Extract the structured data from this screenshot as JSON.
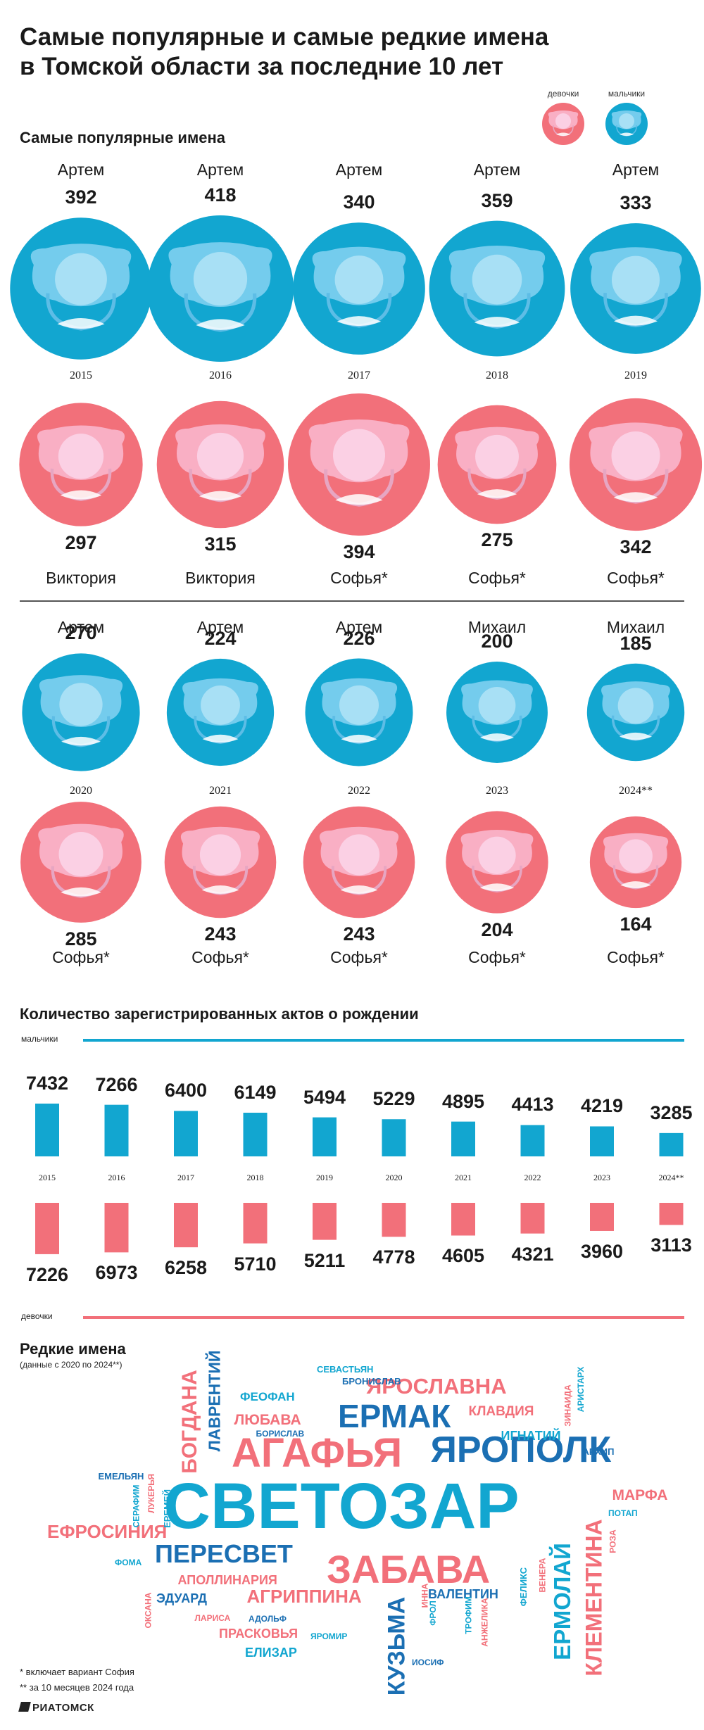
{
  "title_lines": [
    "Самые популярные и самые редкие имена",
    "в Томской области за последние 10 лет"
  ],
  "legend": {
    "girls": "девочки",
    "boys": "мальчики"
  },
  "colors": {
    "boys": "#12a6d0",
    "girls": "#f2707a",
    "boys_inner": "#a8e0f5",
    "girls_inner": "#fbd0e4"
  },
  "popular_section_title": "Самые популярные имена",
  "chart_data": [
    {
      "type": "bubble",
      "title": "Самые популярные имена",
      "categories": [
        "2015",
        "2016",
        "2017",
        "2018",
        "2019",
        "2020",
        "2021",
        "2022",
        "2023",
        "2024**"
      ],
      "series": [
        {
          "name": "мальчики",
          "names": [
            "Артем",
            "Артем",
            "Артем",
            "Артем",
            "Артем",
            "Артем",
            "Артем",
            "Артем",
            "Михаил",
            "Михаил"
          ],
          "values": [
            392,
            418,
            340,
            359,
            333,
            270,
            224,
            226,
            200,
            185
          ]
        },
        {
          "name": "девочки",
          "names": [
            "Виктория",
            "Виктория",
            "Софья*",
            "Софья*",
            "Софья*",
            "Софья*",
            "Софья*",
            "Софья*",
            "Софья*",
            "Софья*"
          ],
          "values": [
            297,
            315,
            394,
            275,
            342,
            285,
            243,
            243,
            204,
            164
          ]
        }
      ]
    },
    {
      "type": "bar",
      "title": "Количество зарегистрированных актов о рождении",
      "categories": [
        "2015",
        "2016",
        "2017",
        "2018",
        "2019",
        "2020",
        "2021",
        "2022",
        "2023",
        "2024**"
      ],
      "series": [
        {
          "name": "мальчики",
          "values": [
            7432,
            7266,
            6400,
            6149,
            5494,
            5229,
            4895,
            4413,
            4219,
            3285
          ]
        },
        {
          "name": "девочки",
          "values": [
            7226,
            6973,
            6258,
            5710,
            5211,
            4778,
            4605,
            4321,
            3960,
            3113
          ]
        }
      ]
    }
  ],
  "births_section_title": "Количество зарегистрированных актов о рождении",
  "births_boys_label": "мальчики",
  "births_girls_label": "девочки",
  "rare_section_title": "Редкие имена",
  "rare_subtitle": "(данные с 2020 по 2024**)",
  "rare_names": [
    {
      "text": "СВЕТОЗАР",
      "color": "boys"
    },
    {
      "text": "АГАФЬЯ",
      "color": "girls"
    },
    {
      "text": "ЯРОПОЛК",
      "color": "boysdark"
    },
    {
      "text": "ЕРМАК",
      "color": "boysdark"
    },
    {
      "text": "ЗАБАВА",
      "color": "girls"
    },
    {
      "text": "ПЕРЕСВЕТ",
      "color": "boysdark"
    },
    {
      "text": "ЯРОСЛАВНА",
      "color": "girls"
    },
    {
      "text": "ЕФРОСИНИЯ",
      "color": "girls"
    },
    {
      "text": "БОГДАНА",
      "color": "girls"
    },
    {
      "text": "ЛАВРЕНТИЙ",
      "color": "boysdark"
    },
    {
      "text": "АГРИППИНА",
      "color": "girls"
    },
    {
      "text": "КУЗЬМА",
      "color": "boysdark"
    },
    {
      "text": "ЕРМОЛАЙ",
      "color": "boys"
    },
    {
      "text": "КЛЕМЕНТИНА",
      "color": "girls"
    },
    {
      "text": "ФЕОФАН",
      "color": "boys"
    },
    {
      "text": "ЛЮБАВА",
      "color": "girls"
    },
    {
      "text": "КЛАВДИЯ",
      "color": "girls"
    },
    {
      "text": "ИГНАТИЙ",
      "color": "boys"
    },
    {
      "text": "МАРФА",
      "color": "girls"
    },
    {
      "text": "АПОЛЛИНАРИЯ",
      "color": "girls"
    },
    {
      "text": "ВАЛЕНТИН",
      "color": "boysdark"
    },
    {
      "text": "ЭДУАРД",
      "color": "boysdark"
    },
    {
      "text": "ПРАСКОВЬЯ",
      "color": "girls"
    },
    {
      "text": "ЕЛИЗАР",
      "color": "boys"
    },
    {
      "text": "СЕВАСТЬЯН",
      "color": "boys"
    },
    {
      "text": "БРОНИСЛАВ",
      "color": "boysdark"
    },
    {
      "text": "БОРИСЛАВ",
      "color": "boysdark"
    },
    {
      "text": "ЕМЕЛЬЯН",
      "color": "boysdark"
    },
    {
      "text": "ЛУКЕРЬЯ",
      "color": "girls"
    },
    {
      "text": "СЕРАФИМ",
      "color": "boys"
    },
    {
      "text": "ЕРЕМЕЙ",
      "color": "boys"
    },
    {
      "text": "АРХИП",
      "color": "boysdark"
    },
    {
      "text": "ЗИНАИДА",
      "color": "girls"
    },
    {
      "text": "АРИСТАРХ",
      "color": "boys"
    },
    {
      "text": "ПОТАП",
      "color": "boys"
    },
    {
      "text": "РОЗА",
      "color": "girls"
    },
    {
      "text": "ФОМА",
      "color": "boys"
    },
    {
      "text": "ОКСАНА",
      "color": "girls"
    },
    {
      "text": "ЛАРИСА",
      "color": "girls"
    },
    {
      "text": "АДОЛЬФ",
      "color": "boysdark"
    },
    {
      "text": "ЯРОМИР",
      "color": "boys"
    },
    {
      "text": "ИННА",
      "color": "girls"
    },
    {
      "text": "ФРОЛ",
      "color": "boys"
    },
    {
      "text": "ТРОФИМ",
      "color": "boys"
    },
    {
      "text": "АНЖЕЛИКА",
      "color": "girls"
    },
    {
      "text": "ФЕЛИКС",
      "color": "boys"
    },
    {
      "text": "ВЕНЕРА",
      "color": "girls"
    },
    {
      "text": "ИОСИФ",
      "color": "boysdark"
    }
  ],
  "footnotes": [
    "* включает вариант София",
    "** за 10 месяцев 2024 года"
  ],
  "logo": "РИАТОМСК"
}
